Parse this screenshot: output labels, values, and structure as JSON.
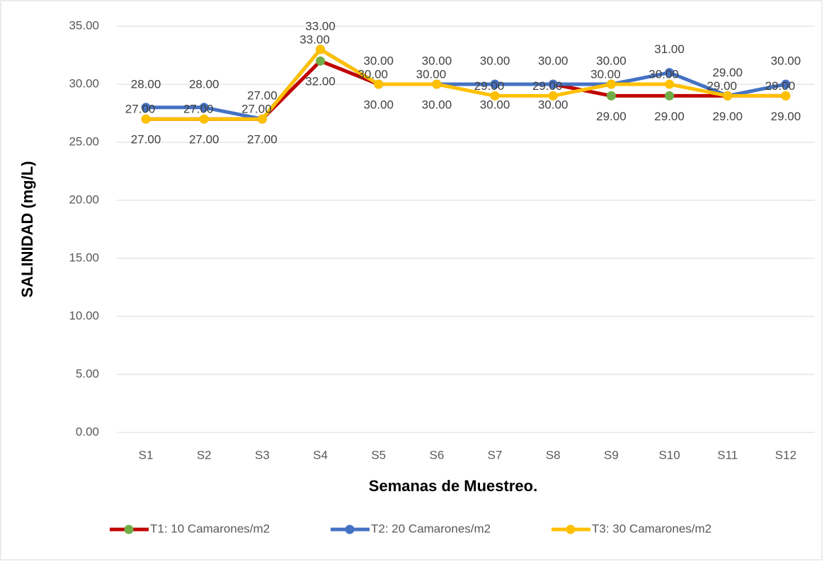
{
  "chart_data": {
    "type": "line",
    "xlabel": "Semanas de Muestreo.",
    "ylabel": "SALINIDAD (mg/L)",
    "categories": [
      "S1",
      "S2",
      "S3",
      "S4",
      "S5",
      "S6",
      "S7",
      "S8",
      "S9",
      "S10",
      "S11",
      "S12"
    ],
    "series": [
      {
        "name": "T1: 10 Camarones/m2",
        "color": "#c00000",
        "marker_color": "#70ad47",
        "values": [
          27,
          27,
          27,
          32,
          30,
          30,
          30,
          30,
          29,
          29,
          29,
          29
        ],
        "value_labels": [
          "27.00",
          "27.00",
          "27.00",
          "32.00",
          "30.00",
          "30.00",
          "30.00",
          "30.00",
          "29.00",
          "29.00",
          "29.00",
          "29.00"
        ]
      },
      {
        "name": "T2: 20 Camarones/m2",
        "color": "#4472c4",
        "marker_color": "#4472c4",
        "values": [
          28,
          28,
          27,
          33,
          30,
          30,
          30,
          30,
          30,
          31,
          29,
          30
        ],
        "value_labels": [
          "28.00",
          "28.00",
          "27.00",
          "33.00",
          "30.00",
          "30.00",
          "30.00",
          "30.00",
          "30.00",
          "31.00",
          "29.00",
          "30.00"
        ]
      },
      {
        "name": "T3: 30 Camarones/m2",
        "color": "#ffc000",
        "marker_color": "#ffc000",
        "values": [
          27,
          27,
          27,
          33,
          30,
          30,
          29,
          29,
          30,
          30,
          29,
          29
        ],
        "value_labels": [
          "27.00",
          "27.00",
          "27.00",
          "33.00",
          "30.00",
          "30.00",
          "29.00",
          "29.00",
          "30.00",
          "30.00",
          "29.00",
          "29.00"
        ]
      }
    ],
    "ylim": [
      0,
      35
    ],
    "yticks": [
      {
        "value": 0,
        "label": "0.00"
      },
      {
        "value": 5,
        "label": "5.00"
      },
      {
        "value": 10,
        "label": "10.00"
      },
      {
        "value": 15,
        "label": "15.00"
      },
      {
        "value": 20,
        "label": "20.00"
      },
      {
        "value": 25,
        "label": "25.00"
      },
      {
        "value": 30,
        "label": "30.00"
      },
      {
        "value": 35,
        "label": "35.00"
      }
    ],
    "grid": true,
    "legend": "bottom"
  }
}
